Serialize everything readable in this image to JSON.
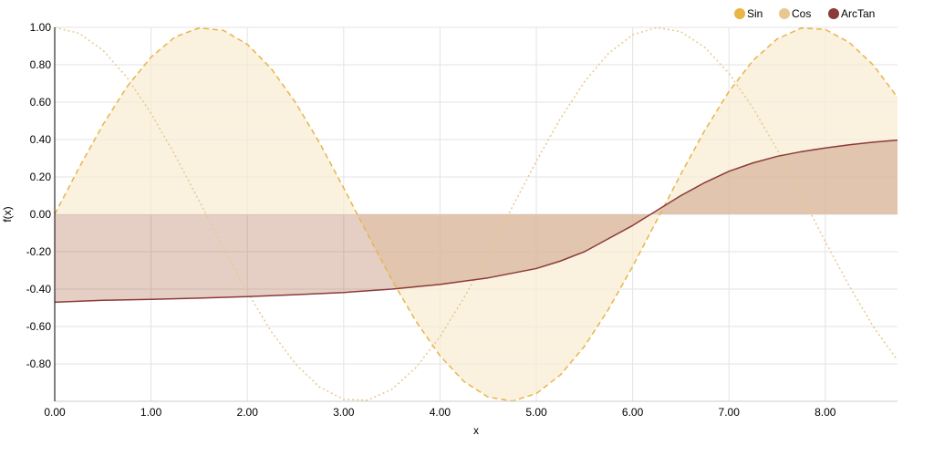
{
  "chart_data": {
    "type": "area",
    "xlabel": "x",
    "ylabel": "f(x)",
    "xlim": [
      0,
      8.75
    ],
    "ylim": [
      -1,
      1
    ],
    "x_ticks": [
      "0.00",
      "1.00",
      "2.00",
      "3.00",
      "4.00",
      "5.00",
      "6.00",
      "7.00",
      "8.00"
    ],
    "y_ticks": [
      "1.00",
      "0.80",
      "0.60",
      "0.40",
      "0.20",
      "0.00",
      "-0.20",
      "-0.40",
      "-0.60",
      "-0.80"
    ],
    "x_tick_values": [
      0,
      1,
      2,
      3,
      4,
      5,
      6,
      7,
      8
    ],
    "y_tick_values": [
      1,
      0.8,
      0.6,
      0.4,
      0.2,
      0,
      -0.2,
      -0.4,
      -0.6,
      -0.8
    ],
    "grid": true,
    "legend_position": "top-right",
    "series": [
      {
        "name": "Sin",
        "color": "#e8b547",
        "fill": "#f8ecd4",
        "style": "dashed",
        "area": true,
        "x": [
          0,
          0.25,
          0.5,
          0.75,
          1,
          1.25,
          1.5,
          1.75,
          2,
          2.25,
          2.5,
          2.75,
          3,
          3.25,
          3.5,
          3.75,
          4,
          4.25,
          4.5,
          4.75,
          5,
          5.25,
          5.5,
          5.75,
          6,
          6.25,
          6.5,
          6.75,
          7,
          7.25,
          7.5,
          7.75,
          8,
          8.25,
          8.5,
          8.75
        ],
        "values": [
          0,
          0.247,
          0.479,
          0.682,
          0.841,
          0.949,
          0.997,
          0.984,
          0.909,
          0.778,
          0.598,
          0.382,
          0.141,
          -0.108,
          -0.351,
          -0.572,
          -0.757,
          -0.895,
          -0.978,
          -0.999,
          -0.959,
          -0.859,
          -0.706,
          -0.508,
          -0.279,
          -0.033,
          0.215,
          0.45,
          0.657,
          0.823,
          0.938,
          0.996,
          0.989,
          0.919,
          0.798,
          0.625
        ]
      },
      {
        "name": "Cos",
        "color": "#e8c890",
        "style": "dotted",
        "area": false,
        "x": [
          0,
          0.25,
          0.5,
          0.75,
          1,
          1.25,
          1.5,
          1.75,
          2,
          2.25,
          2.5,
          2.75,
          3,
          3.25,
          3.5,
          3.75,
          4,
          4.25,
          4.5,
          4.75,
          5,
          5.25,
          5.5,
          5.75,
          6,
          6.25,
          6.5,
          6.75,
          7,
          7.25,
          7.5,
          7.75,
          8,
          8.25,
          8.5,
          8.75
        ],
        "values": [
          1,
          0.969,
          0.878,
          0.732,
          0.54,
          0.315,
          0.071,
          -0.178,
          -0.416,
          -0.628,
          -0.801,
          -0.924,
          -0.99,
          -0.994,
          -0.936,
          -0.82,
          -0.654,
          -0.446,
          -0.211,
          0.038,
          0.284,
          0.512,
          0.709,
          0.861,
          0.96,
          0.999,
          0.977,
          0.893,
          0.754,
          0.568,
          0.347,
          0.104,
          -0.146,
          -0.384,
          -0.602,
          -0.78
        ]
      },
      {
        "name": "ArcTan",
        "color": "#8b3a3a",
        "fill": "#a0522d",
        "style": "solid",
        "area": true,
        "x": [
          0,
          0.5,
          1,
          1.5,
          2,
          2.5,
          3,
          3.5,
          4,
          4.5,
          5,
          5.25,
          5.5,
          5.75,
          6,
          6.25,
          6.5,
          6.75,
          7,
          7.25,
          7.5,
          7.75,
          8,
          8.25,
          8.5,
          8.75
        ],
        "values": [
          -0.47,
          -0.46,
          -0.455,
          -0.448,
          -0.44,
          -0.43,
          -0.418,
          -0.4,
          -0.375,
          -0.34,
          -0.29,
          -0.25,
          -0.2,
          -0.13,
          -0.06,
          0.02,
          0.1,
          0.17,
          0.23,
          0.275,
          0.31,
          0.335,
          0.355,
          0.372,
          0.386,
          0.397
        ]
      }
    ]
  }
}
